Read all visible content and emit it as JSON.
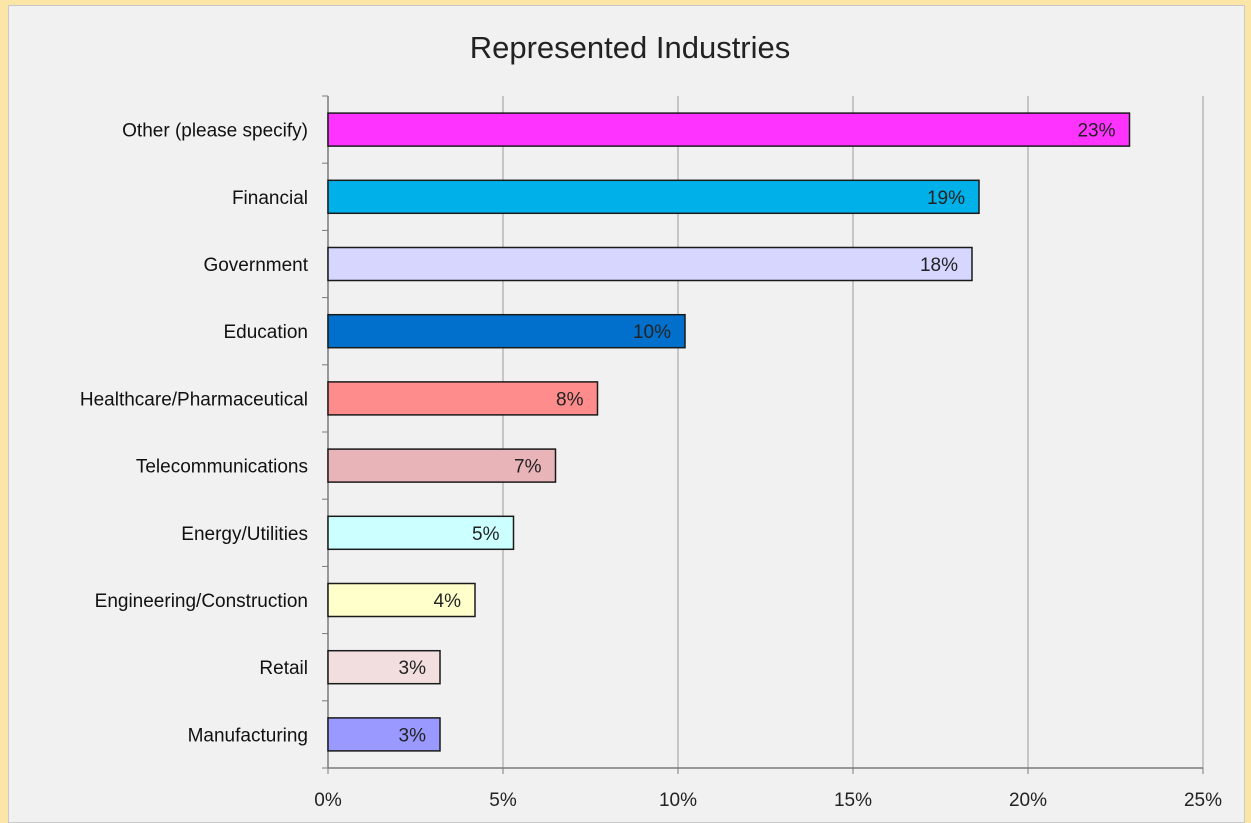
{
  "chart_data": {
    "type": "bar",
    "orientation": "horizontal",
    "title": "Represented Industries",
    "xlabel": "",
    "ylabel": "",
    "xlim": [
      0,
      25
    ],
    "x_ticks": [
      "0%",
      "5%",
      "10%",
      "15%",
      "20%",
      "25%"
    ],
    "grid": "vertical",
    "categories": [
      "Other (please specify)",
      "Financial",
      "Government",
      "Education",
      "Healthcare/Pharmaceutical",
      "Telecommunications",
      "Energy/Utilities",
      "Engineering/Construction",
      "Retail",
      "Manufacturing"
    ],
    "values": [
      22.9,
      18.6,
      18.4,
      10.2,
      7.7,
      6.5,
      5.3,
      4.2,
      3.2,
      3.2
    ],
    "data_labels": [
      "23%",
      "19%",
      "18%",
      "10%",
      "8%",
      "7%",
      "5%",
      "4%",
      "3%",
      "3%"
    ],
    "colors": [
      "#ff33ff",
      "#00b0e8",
      "#d6d6ff",
      "#0070cc",
      "#ff8c8c",
      "#e8b4b8",
      "#ccffff",
      "#ffffcc",
      "#f2dede",
      "#9999ff"
    ]
  }
}
